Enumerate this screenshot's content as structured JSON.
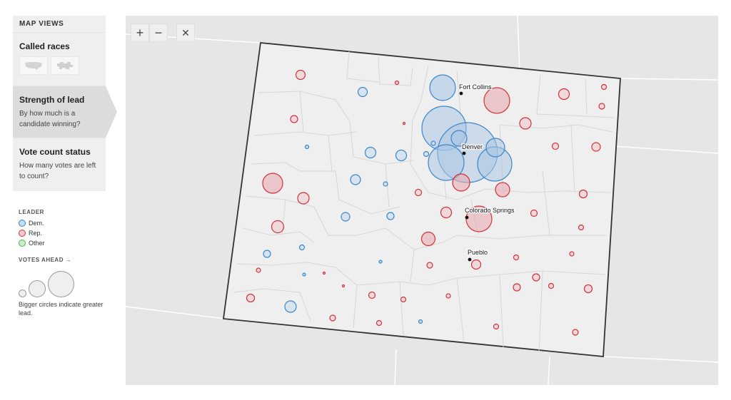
{
  "sidebar": {
    "header": "MAP VIEWS",
    "views": [
      {
        "title": "Called races",
        "desc": ""
      },
      {
        "title": "Strength of lead",
        "desc": "By how much is a candidate winning?"
      },
      {
        "title": "Vote count status",
        "desc": "How many votes are left to count?"
      }
    ],
    "view_icons": [
      "us-map-icon",
      "state-map-icon"
    ]
  },
  "legend": {
    "leader_head": "LEADER",
    "items": [
      {
        "label": "Dem.",
        "color": "#3b86c6"
      },
      {
        "label": "Rep.",
        "color": "#d0323d"
      },
      {
        "label": "Other",
        "color": "#4ab24a"
      }
    ],
    "votes_head": "VOTES AHEAD →",
    "note": "Bigger circles indicate greater lead."
  },
  "controls": {
    "zoom_in": "+",
    "zoom_out": "−",
    "reset": "✕"
  },
  "colors": {
    "dem": "#3b86c6",
    "rep": "#d0323d",
    "other": "#4ab24a",
    "map_bg": "#e6e6e6",
    "state_fill": "#efefef"
  },
  "cities": [
    "Fort Collins",
    "Denver",
    "Colorado Springs",
    "Pueblo"
  ]
}
